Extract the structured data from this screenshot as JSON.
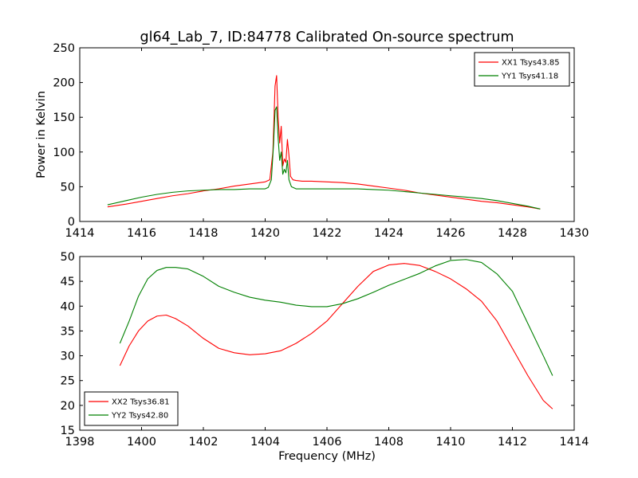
{
  "chart_data": [
    {
      "type": "line",
      "title": "gl64_Lab_7, ID:84778 Calibrated On-source spectrum",
      "xlabel": "",
      "ylabel": "Power in Kelvin",
      "xlim": [
        1414,
        1430
      ],
      "ylim": [
        0,
        250
      ],
      "xticks": [
        1414,
        1416,
        1418,
        1420,
        1422,
        1424,
        1426,
        1428,
        1430
      ],
      "yticks": [
        0,
        50,
        100,
        150,
        200,
        250
      ],
      "grid": false,
      "legend_position": "top-right",
      "series": [
        {
          "name": "XX1 Tsys43.85",
          "color": "#ff0000",
          "x": [
            1414.9,
            1415.5,
            1416.0,
            1416.5,
            1417.0,
            1417.5,
            1418.0,
            1418.5,
            1419.0,
            1419.5,
            1420.0,
            1420.15,
            1420.25,
            1420.32,
            1420.37,
            1420.42,
            1420.47,
            1420.52,
            1420.57,
            1420.62,
            1420.67,
            1420.72,
            1420.77,
            1420.82,
            1420.9,
            1421.0,
            1421.2,
            1421.5,
            1422.0,
            1422.5,
            1423.0,
            1423.5,
            1424.0,
            1424.5,
            1425.0,
            1425.5,
            1426.0,
            1426.5,
            1427.0,
            1427.5,
            1428.0,
            1428.5,
            1428.9
          ],
          "y": [
            21,
            25,
            29,
            33,
            37,
            40,
            44,
            47,
            51,
            54,
            57,
            60,
            100,
            195,
            210,
            150,
            113,
            137,
            80,
            90,
            85,
            118,
            95,
            65,
            60,
            59,
            58,
            58,
            57,
            56,
            54,
            51,
            48,
            45,
            41,
            38,
            35,
            32,
            29,
            27,
            24,
            21,
            18
          ]
        },
        {
          "name": "YY1 Tsys41.18",
          "color": "#008000",
          "x": [
            1414.9,
            1415.5,
            1416.0,
            1416.5,
            1417.0,
            1417.5,
            1418.0,
            1418.5,
            1419.0,
            1419.5,
            1420.0,
            1420.1,
            1420.2,
            1420.27,
            1420.32,
            1420.37,
            1420.42,
            1420.47,
            1420.52,
            1420.57,
            1420.62,
            1420.67,
            1420.72,
            1420.77,
            1420.85,
            1421.0,
            1421.5,
            1422.0,
            1422.5,
            1423.0,
            1423.5,
            1424.0,
            1424.5,
            1425.0,
            1425.5,
            1426.0,
            1426.5,
            1427.0,
            1427.5,
            1428.0,
            1428.5,
            1428.9
          ],
          "y": [
            24,
            30,
            35,
            39,
            42,
            44,
            45,
            46,
            46,
            47,
            47,
            49,
            60,
            110,
            160,
            165,
            120,
            88,
            100,
            68,
            75,
            70,
            88,
            60,
            50,
            47,
            47,
            47,
            47,
            47,
            46,
            45,
            43,
            41,
            39,
            37,
            35,
            33,
            30,
            26,
            22,
            18
          ]
        }
      ]
    },
    {
      "type": "line",
      "title": "",
      "xlabel": "Frequency (MHz)",
      "ylabel": "",
      "xlim": [
        1398,
        1414
      ],
      "ylim": [
        15,
        50
      ],
      "xticks": [
        1398,
        1400,
        1402,
        1404,
        1406,
        1408,
        1410,
        1412,
        1414
      ],
      "yticks": [
        15,
        20,
        25,
        30,
        35,
        40,
        45,
        50
      ],
      "grid": false,
      "legend_position": "bottom-left",
      "series": [
        {
          "name": "XX2 Tsys36.81",
          "color": "#ff0000",
          "x": [
            1399.3,
            1399.6,
            1399.9,
            1400.2,
            1400.5,
            1400.8,
            1401.1,
            1401.5,
            1402.0,
            1402.5,
            1403.0,
            1403.5,
            1404.0,
            1404.5,
            1405.0,
            1405.5,
            1406.0,
            1406.5,
            1407.0,
            1407.5,
            1408.0,
            1408.5,
            1409.0,
            1409.5,
            1410.0,
            1410.5,
            1411.0,
            1411.5,
            1412.0,
            1412.5,
            1413.0,
            1413.3
          ],
          "y": [
            28,
            32,
            35,
            37,
            38,
            38.2,
            37.5,
            36,
            33.5,
            31.5,
            30.6,
            30.2,
            30.4,
            31,
            32.5,
            34.5,
            37,
            40.5,
            44,
            47,
            48.3,
            48.6,
            48.2,
            47,
            45.5,
            43.5,
            41,
            37,
            31.5,
            26,
            21,
            19.3
          ]
        },
        {
          "name": "YY2 Tsys42.80",
          "color": "#008000",
          "x": [
            1399.3,
            1399.6,
            1399.9,
            1400.2,
            1400.5,
            1400.8,
            1401.1,
            1401.5,
            1402.0,
            1402.5,
            1403.0,
            1403.5,
            1404.0,
            1404.5,
            1405.0,
            1405.5,
            1406.0,
            1406.5,
            1407.0,
            1407.5,
            1408.0,
            1408.5,
            1409.0,
            1409.5,
            1410.0,
            1410.5,
            1411.0,
            1411.5,
            1412.0,
            1412.5,
            1413.0,
            1413.3
          ],
          "y": [
            32.5,
            37,
            42,
            45.5,
            47.2,
            47.8,
            47.8,
            47.5,
            46,
            44,
            42.8,
            41.8,
            41.2,
            40.8,
            40.2,
            39.9,
            39.9,
            40.5,
            41.5,
            42.8,
            44.2,
            45.4,
            46.6,
            48.1,
            49.2,
            49.4,
            48.8,
            46.5,
            43,
            36.5,
            30,
            26
          ]
        }
      ]
    }
  ]
}
